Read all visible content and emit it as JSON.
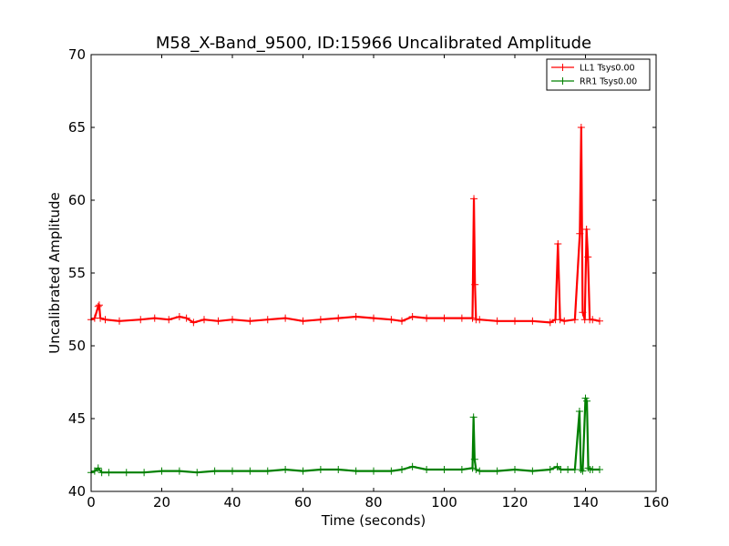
{
  "chart_data": {
    "type": "line",
    "title": "M58_X-Band_9500, ID:15966 Uncalibrated Amplitude",
    "xlabel": "Time (seconds)",
    "ylabel": "Uncalibrated Amplitude",
    "xlim": [
      0,
      160
    ],
    "ylim": [
      40,
      70
    ],
    "xticks": [
      "0",
      "20",
      "40",
      "60",
      "80",
      "100",
      "120",
      "140",
      "160"
    ],
    "yticks": [
      "40",
      "45",
      "50",
      "55",
      "60",
      "65",
      "70"
    ],
    "grid": false,
    "legend_position": "top-right",
    "markers": "plus",
    "series": [
      {
        "name": "LL1 Tsys0.00",
        "color": "#ff0000",
        "x": [
          0,
          1,
          2,
          2.3,
          2.6,
          4,
          8,
          14,
          18,
          22,
          25,
          27,
          29,
          32,
          36,
          40,
          45,
          50,
          55,
          60,
          65,
          70,
          75,
          80,
          85,
          88,
          91,
          95,
          100,
          105,
          108,
          108.4,
          108.7,
          109,
          110,
          115,
          120,
          125,
          130,
          131.5,
          132.2,
          132.8,
          134,
          137,
          138.4,
          138.8,
          139.2,
          139.8,
          140.3,
          140.7,
          141.2,
          142,
          144
        ],
        "y": [
          51.8,
          51.9,
          52.7,
          52.8,
          51.9,
          51.8,
          51.7,
          51.8,
          51.9,
          51.8,
          52.0,
          51.9,
          51.6,
          51.8,
          51.7,
          51.8,
          51.7,
          51.8,
          51.9,
          51.7,
          51.8,
          51.9,
          52.0,
          51.9,
          51.8,
          51.7,
          52.0,
          51.9,
          51.9,
          51.9,
          51.9,
          60.1,
          54.2,
          51.8,
          51.8,
          51.7,
          51.7,
          51.7,
          51.6,
          51.8,
          57.0,
          51.8,
          51.7,
          51.8,
          57.7,
          65.0,
          52.3,
          51.8,
          58.0,
          56.1,
          51.8,
          51.8,
          51.7
        ]
      },
      {
        "name": "RR1 Tsys0.00",
        "color": "#008000",
        "x": [
          0,
          1,
          2,
          3,
          5,
          10,
          15,
          20,
          25,
          30,
          35,
          40,
          45,
          50,
          55,
          60,
          65,
          70,
          75,
          80,
          85,
          88,
          91,
          95,
          100,
          105,
          108,
          108.3,
          108.6,
          109,
          110,
          115,
          120,
          125,
          130,
          132,
          133,
          135,
          137,
          138.3,
          138.7,
          139.2,
          140,
          140.4,
          140.8,
          141.3,
          142,
          144
        ],
        "y": [
          41.3,
          41.4,
          41.6,
          41.3,
          41.3,
          41.3,
          41.3,
          41.4,
          41.4,
          41.3,
          41.4,
          41.4,
          41.4,
          41.4,
          41.5,
          41.4,
          41.5,
          41.5,
          41.4,
          41.4,
          41.4,
          41.5,
          41.7,
          41.5,
          41.5,
          41.5,
          41.6,
          45.1,
          42.2,
          41.5,
          41.4,
          41.4,
          41.5,
          41.4,
          41.5,
          41.7,
          41.5,
          41.5,
          41.5,
          45.5,
          41.5,
          41.4,
          46.4,
          46.2,
          41.6,
          41.5,
          41.5,
          41.5
        ]
      }
    ]
  }
}
